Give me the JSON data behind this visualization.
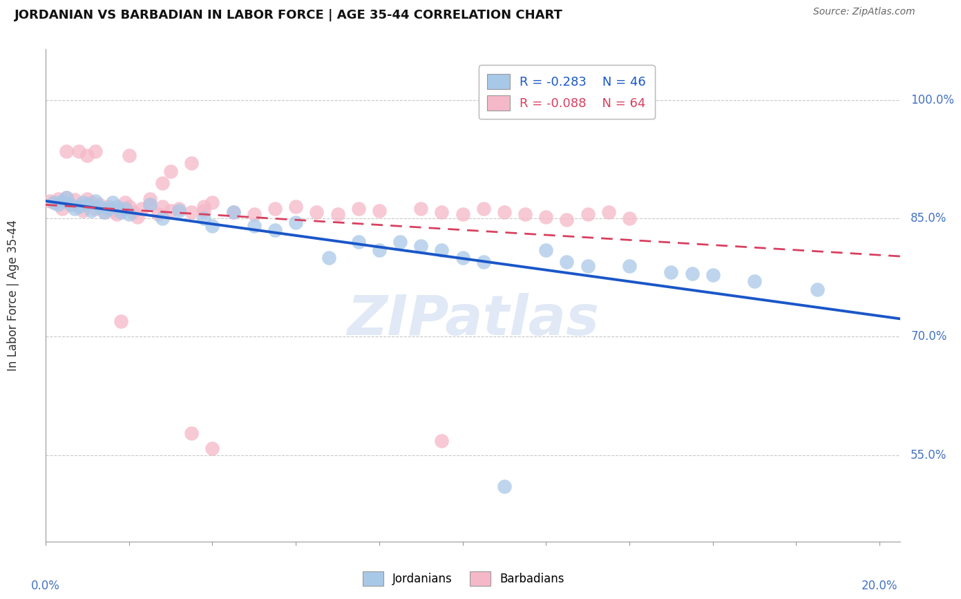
{
  "title": "JORDANIAN VS BARBADIAN IN LABOR FORCE | AGE 35-44 CORRELATION CHART",
  "source": "Source: ZipAtlas.com",
  "ylabel": "In Labor Force | Age 35-44",
  "ytick_values": [
    0.55,
    0.7,
    0.85,
    1.0
  ],
  "ytick_labels": [
    "55.0%",
    "70.0%",
    "85.0%",
    "100.0%"
  ],
  "xlim": [
    0.0,
    0.205
  ],
  "ylim": [
    0.44,
    1.065
  ],
  "legend_r_blue": "R = -0.283",
  "legend_n_blue": "N = 46",
  "legend_r_pink": "R = -0.088",
  "legend_n_pink": "N = 64",
  "blue_scatter_color": "#a8c8e8",
  "pink_scatter_color": "#f5b8c8",
  "blue_line_color": "#1a56c8",
  "pink_line_color": "#d84060",
  "jordanians_x": [
    0.002,
    0.003,
    0.004,
    0.005,
    0.006,
    0.007,
    0.008,
    0.009,
    0.01,
    0.011,
    0.012,
    0.013,
    0.014,
    0.015,
    0.016,
    0.017,
    0.018,
    0.019,
    0.02,
    0.025,
    0.028,
    0.032,
    0.038,
    0.04,
    0.045,
    0.05,
    0.055,
    0.06,
    0.068,
    0.075,
    0.08,
    0.085,
    0.09,
    0.095,
    0.1,
    0.105,
    0.11,
    0.12,
    0.125,
    0.13,
    0.14,
    0.15,
    0.155,
    0.16,
    0.17,
    0.185
  ],
  "jordanians_y": [
    0.87,
    0.868,
    0.872,
    0.876,
    0.868,
    0.862,
    0.865,
    0.87,
    0.868,
    0.86,
    0.872,
    0.865,
    0.858,
    0.862,
    0.87,
    0.865,
    0.858,
    0.862,
    0.855,
    0.868,
    0.85,
    0.86,
    0.85,
    0.84,
    0.858,
    0.84,
    0.835,
    0.845,
    0.8,
    0.82,
    0.81,
    0.82,
    0.815,
    0.81,
    0.8,
    0.795,
    0.51,
    0.81,
    0.795,
    0.79,
    0.79,
    0.782,
    0.78,
    0.778,
    0.77,
    0.76
  ],
  "barbadians_x": [
    0.001,
    0.002,
    0.003,
    0.004,
    0.005,
    0.006,
    0.007,
    0.008,
    0.009,
    0.01,
    0.011,
    0.012,
    0.013,
    0.014,
    0.015,
    0.016,
    0.017,
    0.018,
    0.019,
    0.02,
    0.021,
    0.022,
    0.023,
    0.025,
    0.027,
    0.028,
    0.03,
    0.032,
    0.035,
    0.038,
    0.04,
    0.045,
    0.05,
    0.055,
    0.06,
    0.065,
    0.07,
    0.075,
    0.08,
    0.09,
    0.095,
    0.1,
    0.105,
    0.11,
    0.115,
    0.12,
    0.125,
    0.13,
    0.135,
    0.14,
    0.03,
    0.038,
    0.025,
    0.012,
    0.02,
    0.008,
    0.005,
    0.095,
    0.035,
    0.028,
    0.018,
    0.01,
    0.035,
    0.04
  ],
  "barbadians_y": [
    0.872,
    0.87,
    0.875,
    0.862,
    0.876,
    0.868,
    0.874,
    0.865,
    0.86,
    0.875,
    0.87,
    0.862,
    0.868,
    0.858,
    0.865,
    0.86,
    0.855,
    0.862,
    0.87,
    0.865,
    0.858,
    0.852,
    0.862,
    0.868,
    0.855,
    0.865,
    0.86,
    0.862,
    0.858,
    0.865,
    0.87,
    0.858,
    0.855,
    0.862,
    0.865,
    0.858,
    0.855,
    0.862,
    0.86,
    0.862,
    0.858,
    0.855,
    0.862,
    0.858,
    0.855,
    0.852,
    0.848,
    0.855,
    0.858,
    0.85,
    0.91,
    0.86,
    0.875,
    0.935,
    0.93,
    0.935,
    0.935,
    0.568,
    0.92,
    0.895,
    0.72,
    0.93,
    0.578,
    0.558
  ]
}
